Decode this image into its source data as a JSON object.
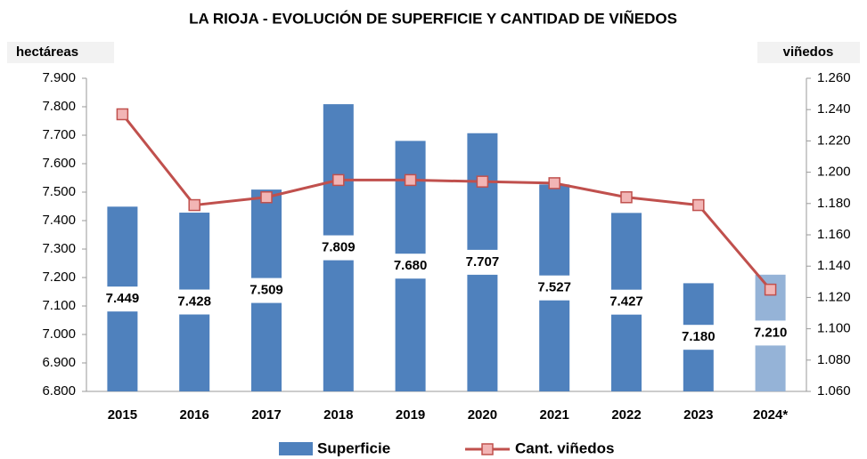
{
  "chart_data": {
    "type": "bar_line",
    "title": "LA RIOJA - EVOLUCIÓN DE SUPERFICIE Y CANTIDAD DE VIÑEDOS",
    "y_label": "hectáreas",
    "y2_label": "viñedos",
    "categories": [
      "2015",
      "2016",
      "2017",
      "2018",
      "2019",
      "2020",
      "2021",
      "2022",
      "2023",
      "2024*"
    ],
    "series": [
      {
        "name": "Superficie",
        "type": "bar",
        "color": "#4f81bd",
        "colors": [
          "#4f81bd",
          "#4f81bd",
          "#4f81bd",
          "#4f81bd",
          "#4f81bd",
          "#4f81bd",
          "#4f81bd",
          "#4f81bd",
          "#4f81bd",
          "#95b3d7"
        ],
        "values": [
          7449,
          7428,
          7509,
          7809,
          7680,
          7707,
          7527,
          7427,
          7180,
          7210
        ],
        "value_labels": [
          "7.449",
          "7.428",
          "7.509",
          "7.809",
          "7.680",
          "7.707",
          "7.527",
          "7.427",
          "7.180",
          "7.210"
        ]
      },
      {
        "name": "Cant. viñedos",
        "type": "line",
        "axis": "y2",
        "color": "#c0504d",
        "marker_color": "#f2b5b5",
        "values": [
          1237,
          1179,
          1184,
          1195,
          1195,
          1194,
          1193,
          1184,
          1179,
          1125
        ]
      }
    ],
    "ylim": [
      6800,
      7900
    ],
    "yticks": [
      {
        "value": 6800,
        "label": "6.800"
      },
      {
        "value": 6900,
        "label": "6.900"
      },
      {
        "value": 7000,
        "label": "7.000"
      },
      {
        "value": 7100,
        "label": "7.100"
      },
      {
        "value": 7200,
        "label": "7.200"
      },
      {
        "value": 7300,
        "label": "7.300"
      },
      {
        "value": 7400,
        "label": "7.400"
      },
      {
        "value": 7500,
        "label": "7.500"
      },
      {
        "value": 7600,
        "label": "7.600"
      },
      {
        "value": 7700,
        "label": "7.700"
      },
      {
        "value": 7800,
        "label": "7.800"
      },
      {
        "value": 7900,
        "label": "7.900"
      }
    ],
    "y2lim": [
      1060,
      1260
    ],
    "y2ticks": [
      {
        "value": 1060,
        "label": "1.060"
      },
      {
        "value": 1080,
        "label": "1.080"
      },
      {
        "value": 1100,
        "label": "1.100"
      },
      {
        "value": 1120,
        "label": "1.120"
      },
      {
        "value": 1140,
        "label": "1.140"
      },
      {
        "value": 1160,
        "label": "1.160"
      },
      {
        "value": 1180,
        "label": "1.180"
      },
      {
        "value": 1200,
        "label": "1.200"
      },
      {
        "value": 1220,
        "label": "1.220"
      },
      {
        "value": 1240,
        "label": "1.240"
      },
      {
        "value": 1260,
        "label": "1.260"
      }
    ],
    "grid": false
  }
}
